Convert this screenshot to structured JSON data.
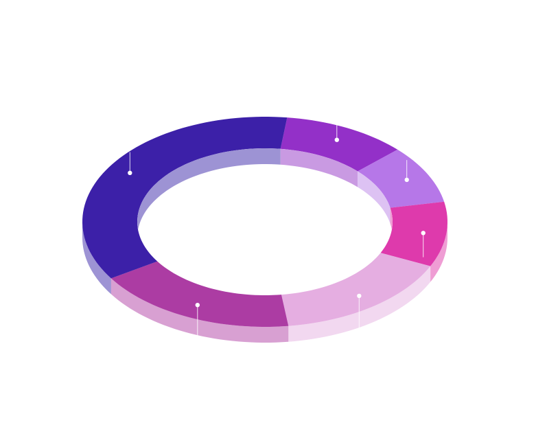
{
  "chart_data": {
    "type": "pie",
    "style": "3d-donut",
    "title": "",
    "legend": "none",
    "data_labels": "none",
    "slices": [
      {
        "value": 11,
        "color": "#9330C8",
        "side_color": "#C99AE2"
      },
      {
        "value": 9,
        "color": "#B677E8",
        "side_color": "#DDC2F3"
      },
      {
        "value": 10,
        "color": "#DE3AAC",
        "side_color": "#EF9DD4"
      },
      {
        "value": 16,
        "color": "#E5AEE1",
        "side_color": "#F2D8F0"
      },
      {
        "value": 18,
        "color": "#AC3CA3",
        "side_color": "#D8A0D2"
      },
      {
        "value": 36,
        "color": "#3C20A8",
        "side_color": "#9D93D4"
      }
    ]
  }
}
